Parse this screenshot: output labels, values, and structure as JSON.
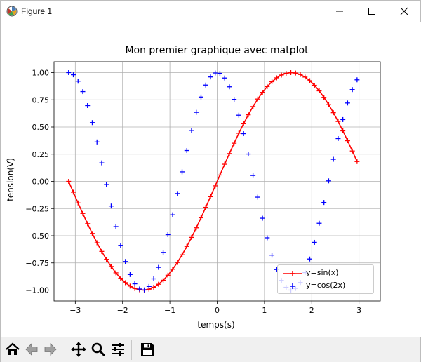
{
  "window": {
    "title": "Figure 1",
    "icon": "matplotlib-figure-icon",
    "controls": [
      "minimize-icon",
      "maximize-icon",
      "close-icon"
    ]
  },
  "toolbar": {
    "buttons": [
      "home-icon",
      "back-arrow-icon",
      "forward-arrow-icon",
      "pan-move-icon",
      "zoom-magnifier-icon",
      "configure-subplots-icon",
      "save-floppy-icon"
    ]
  },
  "colors": {
    "sin": "#ff0000",
    "cos": "#0000ff",
    "grid": "#b0b0b0"
  },
  "chart_data": {
    "type": "line",
    "title": "Mon premier graphique avec matplot",
    "xlabel": "temps(s)",
    "ylabel": "tension(V)",
    "xlim": [
      -3.45,
      3.45
    ],
    "ylim": [
      -1.1,
      1.1
    ],
    "grid": true,
    "legend_position": "lower right",
    "xticks": [
      "−3",
      "−2",
      "−1",
      "0",
      "1",
      "2",
      "3"
    ],
    "yticks": [
      "1.00",
      "0.75",
      "0.50",
      "0.25",
      "0.00",
      "−0.25",
      "−0.50",
      "−0.75",
      "−1.00"
    ],
    "x_range": {
      "start": -3.1416,
      "stop": 3.0416,
      "step": 0.1
    },
    "series": [
      {
        "name": "y=sin(x)",
        "function": "sin(x)",
        "style": "red line with + markers",
        "color": "#ff0000"
      },
      {
        "name": "y=cos(2x)",
        "function": "cos(2x)",
        "style": "blue + markers only",
        "color": "#0000ff"
      }
    ]
  }
}
